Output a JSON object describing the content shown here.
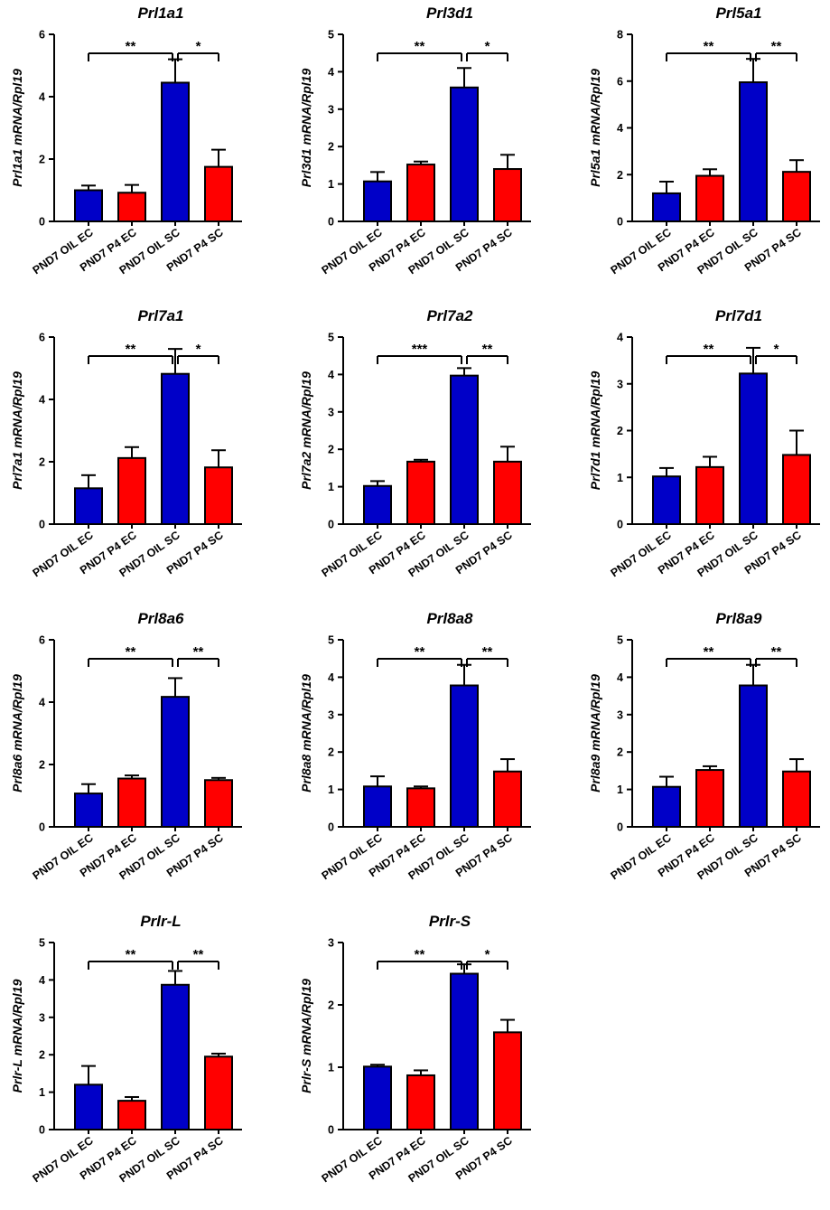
{
  "categories": [
    "PND7 OIL EC",
    "PND7 P4 EC",
    "PND7 OIL SC",
    "PND7 P4 SC"
  ],
  "colors": {
    "blue": "#0000c8",
    "red": "#ff0000",
    "axis": "#000000"
  },
  "chart_data": [
    {
      "type": "bar",
      "title": "Prl1a1",
      "ylabel": "Prl1a1 mRNA/Rpl19",
      "ylim": [
        0,
        6
      ],
      "yticks": [
        "0",
        "2",
        "4",
        "6"
      ],
      "values": [
        1.0,
        0.92,
        4.45,
        1.75
      ],
      "errors": [
        0.15,
        0.25,
        0.75,
        0.55
      ],
      "significance": [
        "**",
        "*"
      ]
    },
    {
      "type": "bar",
      "title": "Prl3d1",
      "ylabel": "Prl3d1 mRNA/Rpl19",
      "ylim": [
        0,
        5
      ],
      "yticks": [
        "0",
        "1",
        "2",
        "3",
        "4",
        "5"
      ],
      "values": [
        1.07,
        1.52,
        3.58,
        1.4
      ],
      "errors": [
        0.25,
        0.08,
        0.52,
        0.38
      ],
      "significance": [
        "**",
        "*"
      ]
    },
    {
      "type": "bar",
      "title": "Prl5a1",
      "ylabel": "Prl5a1 mRNA/Rpl19",
      "ylim": [
        0,
        8
      ],
      "yticks": [
        "0",
        "2",
        "4",
        "6",
        "8"
      ],
      "values": [
        1.2,
        1.95,
        5.95,
        2.12
      ],
      "errors": [
        0.5,
        0.28,
        1.0,
        0.5
      ],
      "significance": [
        "**",
        "**"
      ]
    },
    {
      "type": "bar",
      "title": "Prl7a1",
      "ylabel": "Prl7a1 mRNA/Rpl19",
      "ylim": [
        0,
        6
      ],
      "yticks": [
        "0",
        "2",
        "4",
        "6"
      ],
      "values": [
        1.15,
        2.12,
        4.82,
        1.82
      ],
      "errors": [
        0.42,
        0.35,
        0.8,
        0.55
      ],
      "significance": [
        "**",
        "*"
      ]
    },
    {
      "type": "bar",
      "title": "Prl7a2",
      "ylabel": "Prl7a2 mRNA/Rpl19",
      "ylim": [
        0,
        5
      ],
      "yticks": [
        "0",
        "1",
        "2",
        "3",
        "4",
        "5"
      ],
      "values": [
        1.02,
        1.67,
        3.97,
        1.67
      ],
      "errors": [
        0.13,
        0.05,
        0.2,
        0.4
      ],
      "significance": [
        "***",
        "**"
      ]
    },
    {
      "type": "bar",
      "title": "Prl7d1",
      "ylabel": "Prl7d1 mRNA/Rpl19",
      "ylim": [
        0,
        4
      ],
      "yticks": [
        "0",
        "1",
        "2",
        "3",
        "4"
      ],
      "values": [
        1.02,
        1.22,
        3.22,
        1.48
      ],
      "errors": [
        0.18,
        0.22,
        0.55,
        0.52
      ],
      "significance": [
        "**",
        "*"
      ]
    },
    {
      "type": "bar",
      "title": "Prl8a6",
      "ylabel": "Prl8a6 mRNA/Rpl19",
      "ylim": [
        0,
        6
      ],
      "yticks": [
        "0",
        "2",
        "4",
        "6"
      ],
      "values": [
        1.07,
        1.55,
        4.17,
        1.5
      ],
      "errors": [
        0.3,
        0.1,
        0.6,
        0.07
      ],
      "significance": [
        "**",
        "**"
      ]
    },
    {
      "type": "bar",
      "title": "Prl8a8",
      "ylabel": "Prl8a8 mRNA/Rpl19",
      "ylim": [
        0,
        5
      ],
      "yticks": [
        "0",
        "1",
        "2",
        "3",
        "4",
        "5"
      ],
      "values": [
        1.08,
        1.03,
        3.78,
        1.48
      ],
      "errors": [
        0.27,
        0.05,
        0.55,
        0.33
      ],
      "significance": [
        "**",
        "**"
      ]
    },
    {
      "type": "bar",
      "title": "Prl8a9",
      "ylabel": "Prl8a9 mRNA/Rpl19",
      "ylim": [
        0,
        5
      ],
      "yticks": [
        "0",
        "1",
        "2",
        "3",
        "4",
        "5"
      ],
      "values": [
        1.07,
        1.52,
        3.78,
        1.48
      ],
      "errors": [
        0.27,
        0.1,
        0.55,
        0.33
      ],
      "significance": [
        "**",
        "**"
      ]
    },
    {
      "type": "bar",
      "title": "Prlr-L",
      "ylabel": "Prlr-L mRNA/Rpl19",
      "ylim": [
        0,
        5
      ],
      "yticks": [
        "0",
        "1",
        "2",
        "3",
        "4",
        "5"
      ],
      "values": [
        1.2,
        0.77,
        3.87,
        1.95
      ],
      "errors": [
        0.5,
        0.1,
        0.37,
        0.08
      ],
      "significance": [
        "**",
        "**"
      ]
    },
    {
      "type": "bar",
      "title": "Prlr-S",
      "ylabel": "Prlr-S mRNA/Rpl19",
      "ylim": [
        0,
        3
      ],
      "yticks": [
        "0",
        "1",
        "2",
        "3"
      ],
      "values": [
        1.01,
        0.87,
        2.5,
        1.56
      ],
      "errors": [
        0.03,
        0.08,
        0.15,
        0.2
      ],
      "significance": [
        "**",
        "*"
      ]
    }
  ]
}
